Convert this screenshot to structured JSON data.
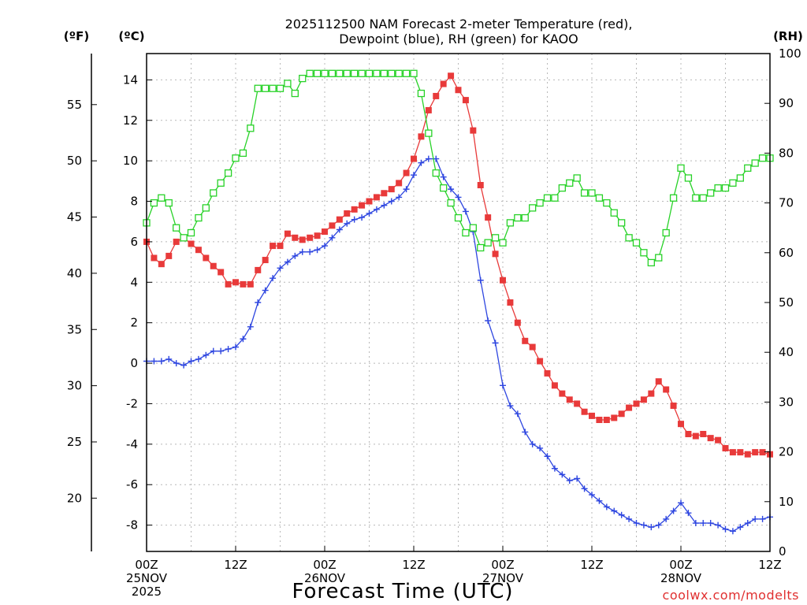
{
  "chart_data": {
    "type": "line",
    "title_lines": [
      "2025112500 NAM Forecast 2-meter Temperature (red),",
      "Dewpoint (blue), RH (green) for KAOO"
    ],
    "xlabel": "Forecast Time (UTC)",
    "credit": "coolwx.com/modelts",
    "units": {
      "fahrenheit": "(ºF)",
      "celsius": "(ºC)",
      "rh": "(RH)"
    },
    "x_range_hours": [
      0,
      84
    ],
    "x_ticks": [
      {
        "hour": 0,
        "lines": [
          "00Z",
          "25NOV",
          "2025"
        ]
      },
      {
        "hour": 12,
        "lines": [
          "12Z"
        ]
      },
      {
        "hour": 24,
        "lines": [
          "00Z",
          "26NOV"
        ]
      },
      {
        "hour": 36,
        "lines": [
          "12Z"
        ]
      },
      {
        "hour": 48,
        "lines": [
          "00Z",
          "27NOV"
        ]
      },
      {
        "hour": 60,
        "lines": [
          "12Z"
        ]
      },
      {
        "hour": 72,
        "lines": [
          "00Z",
          "28NOV"
        ]
      },
      {
        "hour": 84,
        "lines": [
          "12Z"
        ]
      }
    ],
    "celsius_axis": {
      "range": [
        -9.3,
        15.3
      ],
      "ticks": [
        "-8",
        "-6",
        "-4",
        "-2",
        "0",
        "2",
        "4",
        "6",
        "8",
        "10",
        "12",
        "14"
      ]
    },
    "fahrenheit_axis": {
      "ticks": [
        "20",
        "25",
        "30",
        "35",
        "40",
        "45",
        "50",
        "55"
      ]
    },
    "rh_axis": {
      "range": [
        0,
        100
      ],
      "ticks": [
        "0",
        "10",
        "20",
        "30",
        "40",
        "50",
        "60",
        "70",
        "80",
        "90",
        "100"
      ]
    },
    "series": [
      {
        "name": "Temperature",
        "color": "#e83a3a",
        "marker": "filled-square",
        "axis": "celsius",
        "values": [
          6.0,
          5.2,
          4.9,
          5.3,
          6.0,
          6.2,
          5.9,
          5.6,
          5.2,
          4.8,
          4.5,
          3.9,
          4.0,
          3.9,
          3.9,
          4.6,
          5.1,
          5.8,
          5.8,
          6.4,
          6.2,
          6.1,
          6.2,
          6.3,
          6.5,
          6.8,
          7.1,
          7.4,
          7.6,
          7.8,
          8.0,
          8.2,
          8.4,
          8.6,
          8.9,
          9.4,
          10.1,
          11.2,
          12.5,
          13.2,
          13.8,
          14.2,
          13.5,
          13.0,
          11.5,
          8.8,
          7.2,
          5.4,
          4.1,
          3.0,
          2.0,
          1.1,
          0.8,
          0.1,
          -0.5,
          -1.1,
          -1.5,
          -1.8,
          -2.0,
          -2.4,
          -2.6,
          -2.8,
          -2.8,
          -2.7,
          -2.5,
          -2.2,
          -2.0,
          -1.8,
          -1.5,
          -0.9,
          -1.3,
          -2.1,
          -3.0,
          -3.5,
          -3.6,
          -3.5,
          -3.7,
          -3.8,
          -4.2,
          -4.4,
          -4.4,
          -4.5,
          -4.4,
          -4.4,
          -4.5
        ]
      },
      {
        "name": "Dewpoint",
        "color": "#2e46e0",
        "marker": "plus",
        "axis": "celsius",
        "values": [
          0.1,
          0.1,
          0.1,
          0.2,
          0.0,
          -0.1,
          0.1,
          0.2,
          0.4,
          0.6,
          0.6,
          0.7,
          0.8,
          1.2,
          1.8,
          3.0,
          3.6,
          4.2,
          4.7,
          5.0,
          5.3,
          5.5,
          5.5,
          5.6,
          5.8,
          6.2,
          6.6,
          6.9,
          7.1,
          7.2,
          7.4,
          7.6,
          7.8,
          8.0,
          8.2,
          8.6,
          9.3,
          9.9,
          10.1,
          10.1,
          9.2,
          8.6,
          8.2,
          7.5,
          6.5,
          4.1,
          2.1,
          1.0,
          -1.1,
          -2.1,
          -2.5,
          -3.4,
          -4.0,
          -4.2,
          -4.6,
          -5.2,
          -5.5,
          -5.8,
          -5.7,
          -6.2,
          -6.5,
          -6.8,
          -7.1,
          -7.3,
          -7.5,
          -7.7,
          -7.9,
          -8.0,
          -8.1,
          -8.0,
          -7.7,
          -7.3,
          -6.9,
          -7.4,
          -7.9,
          -7.9,
          -7.9,
          -8.0,
          -8.2,
          -8.3,
          -8.1,
          -7.9,
          -7.7,
          -7.7,
          -7.6
        ]
      },
      {
        "name": "RH",
        "color": "#28d228",
        "marker": "open-square",
        "axis": "rh",
        "values": [
          66,
          70,
          71,
          70,
          65,
          63,
          64,
          67,
          69,
          72,
          74,
          76,
          79,
          80,
          85,
          93,
          93,
          93,
          93,
          94,
          92,
          95,
          96,
          96,
          96,
          96,
          96,
          96,
          96,
          96,
          96,
          96,
          96,
          96,
          96,
          96,
          96,
          92,
          84,
          76,
          73,
          70,
          67,
          64,
          65,
          61,
          62,
          63,
          62,
          66,
          67,
          67,
          69,
          70,
          71,
          71,
          73,
          74,
          75,
          72,
          72,
          71,
          70,
          68,
          66,
          63,
          62,
          60,
          58,
          59,
          64,
          71,
          77,
          75,
          71,
          71,
          72,
          73,
          73,
          74,
          75,
          77,
          78,
          79,
          79
        ]
      }
    ]
  }
}
